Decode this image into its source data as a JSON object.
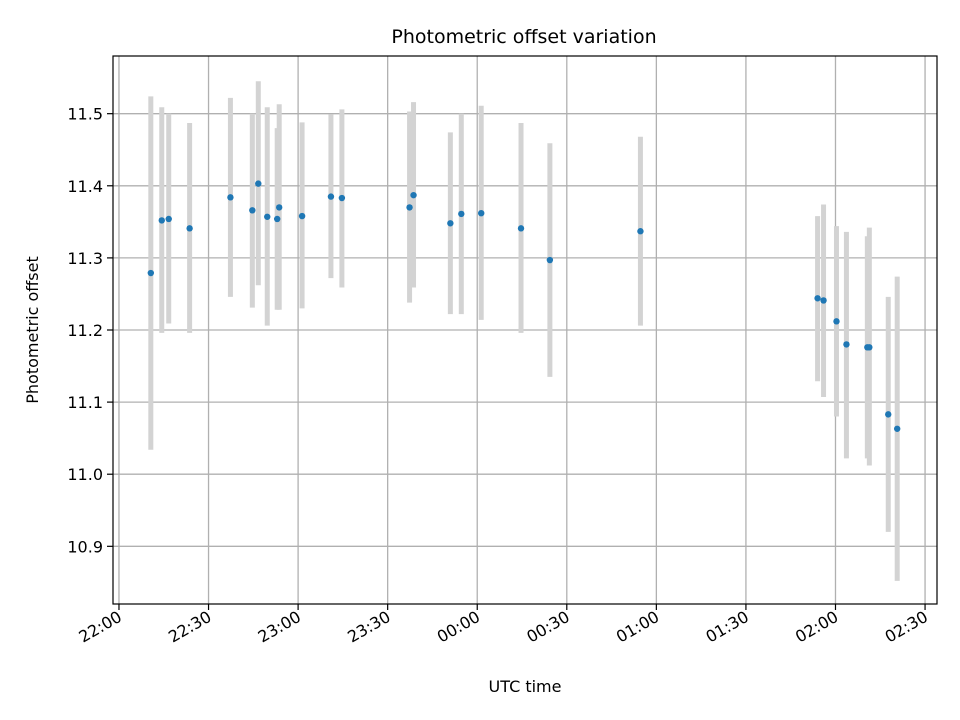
{
  "chart_data": {
    "type": "scatter",
    "title": "Photometric offset variation",
    "xlabel": "UTC time",
    "ylabel": "Photometric offset",
    "grid": true,
    "legend": "none",
    "colors": {
      "points": "#1f77b4",
      "errorbars": "#d3d3d3",
      "grid": "#b0b0b0"
    },
    "xlim": [
      "2000-01-01T21:58:00",
      "2000-01-02T02:34:00"
    ],
    "ylim": [
      10.82,
      11.58
    ],
    "xticks": [
      {
        "label": "22:00",
        "value": "2000-01-01T22:00:00"
      },
      {
        "label": "22:30",
        "value": "2000-01-01T22:30:00"
      },
      {
        "label": "23:00",
        "value": "2000-01-01T23:00:00"
      },
      {
        "label": "23:30",
        "value": "2000-01-01T23:30:00"
      },
      {
        "label": "00:00",
        "value": "2000-01-02T00:00:00"
      },
      {
        "label": "00:30",
        "value": "2000-01-02T00:30:00"
      },
      {
        "label": "01:00",
        "value": "2000-01-02T01:00:00"
      },
      {
        "label": "01:30",
        "value": "2000-01-02T01:30:00"
      },
      {
        "label": "02:00",
        "value": "2000-01-02T02:00:00"
      },
      {
        "label": "02:30",
        "value": "2000-01-02T02:30:00"
      }
    ],
    "yticks": [
      10.9,
      11.0,
      11.1,
      11.2,
      11.3,
      11.4,
      11.5
    ],
    "points": [
      {
        "x": "2000-01-01T22:10:40",
        "y": 11.279,
        "ylo": 11.034,
        "yhi": 11.524
      },
      {
        "x": "2000-01-01T22:14:20",
        "y": 11.352,
        "ylo": 11.196,
        "yhi": 11.509
      },
      {
        "x": "2000-01-01T22:16:40",
        "y": 11.354,
        "ylo": 11.209,
        "yhi": 11.5
      },
      {
        "x": "2000-01-01T22:23:40",
        "y": 11.341,
        "ylo": 11.196,
        "yhi": 11.487
      },
      {
        "x": "2000-01-01T22:37:20",
        "y": 11.384,
        "ylo": 11.246,
        "yhi": 11.522
      },
      {
        "x": "2000-01-01T22:44:40",
        "y": 11.366,
        "ylo": 11.231,
        "yhi": 11.5
      },
      {
        "x": "2000-01-01T22:46:40",
        "y": 11.403,
        "ylo": 11.262,
        "yhi": 11.545
      },
      {
        "x": "2000-01-01T22:49:40",
        "y": 11.357,
        "ylo": 11.206,
        "yhi": 11.509
      },
      {
        "x": "2000-01-01T22:53:00",
        "y": 11.354,
        "ylo": 11.228,
        "yhi": 11.48
      },
      {
        "x": "2000-01-01T22:53:40",
        "y": 11.37,
        "ylo": 11.228,
        "yhi": 11.513
      },
      {
        "x": "2000-01-01T23:01:20",
        "y": 11.358,
        "ylo": 11.23,
        "yhi": 11.488
      },
      {
        "x": "2000-01-01T23:11:00",
        "y": 11.385,
        "ylo": 11.272,
        "yhi": 11.499
      },
      {
        "x": "2000-01-01T23:14:40",
        "y": 11.383,
        "ylo": 11.259,
        "yhi": 11.506
      },
      {
        "x": "2000-01-01T23:37:20",
        "y": 11.37,
        "ylo": 11.238,
        "yhi": 11.503
      },
      {
        "x": "2000-01-01T23:38:40",
        "y": 11.387,
        "ylo": 11.259,
        "yhi": 11.516
      },
      {
        "x": "2000-01-01T23:51:00",
        "y": 11.348,
        "ylo": 11.222,
        "yhi": 11.474
      },
      {
        "x": "2000-01-01T23:54:40",
        "y": 11.361,
        "ylo": 11.222,
        "yhi": 11.5
      },
      {
        "x": "2000-01-02T00:01:20",
        "y": 11.362,
        "ylo": 11.214,
        "yhi": 11.511
      },
      {
        "x": "2000-01-02T00:14:40",
        "y": 11.341,
        "ylo": 11.196,
        "yhi": 11.487
      },
      {
        "x": "2000-01-02T00:24:20",
        "y": 11.297,
        "ylo": 11.135,
        "yhi": 11.459
      },
      {
        "x": "2000-01-02T00:54:40",
        "y": 11.337,
        "ylo": 11.206,
        "yhi": 11.468
      },
      {
        "x": "2000-01-02T01:54:00",
        "y": 11.244,
        "ylo": 11.129,
        "yhi": 11.358
      },
      {
        "x": "2000-01-02T01:56:00",
        "y": 11.241,
        "ylo": 11.107,
        "yhi": 11.374
      },
      {
        "x": "2000-01-02T02:00:20",
        "y": 11.212,
        "ylo": 11.08,
        "yhi": 11.344
      },
      {
        "x": "2000-01-02T02:03:40",
        "y": 11.18,
        "ylo": 11.022,
        "yhi": 11.336
      },
      {
        "x": "2000-01-02T02:10:40",
        "y": 11.176,
        "ylo": 11.022,
        "yhi": 11.33
      },
      {
        "x": "2000-01-02T02:11:20",
        "y": 11.176,
        "ylo": 11.012,
        "yhi": 11.342
      },
      {
        "x": "2000-01-02T02:17:40",
        "y": 11.083,
        "ylo": 10.92,
        "yhi": 11.246
      },
      {
        "x": "2000-01-02T02:20:40",
        "y": 11.063,
        "ylo": 10.852,
        "yhi": 11.274
      }
    ]
  }
}
